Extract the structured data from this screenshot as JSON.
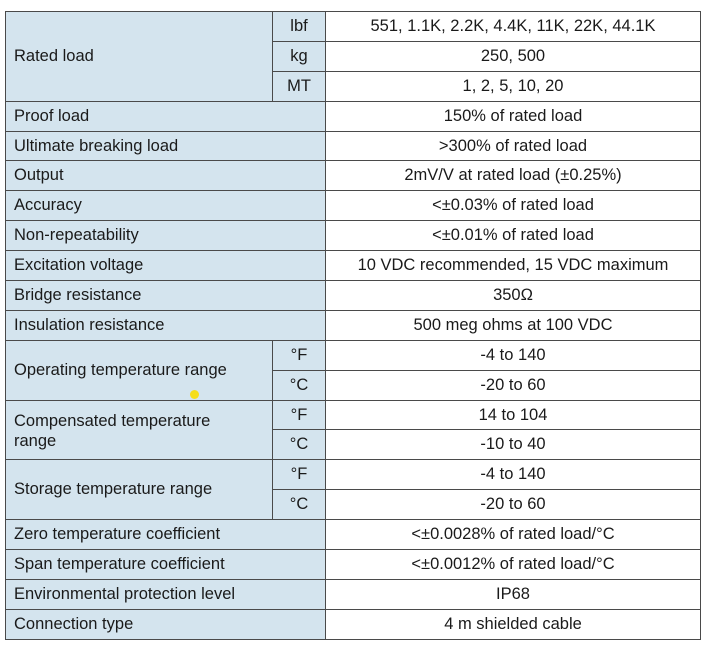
{
  "rated_load": {
    "label": "Rated load",
    "rows": [
      {
        "unit": "lbf",
        "value": "551, 1.1K, 2.2K, 4.4K, 11K, 22K, 44.1K"
      },
      {
        "unit": "kg",
        "value": "250, 500"
      },
      {
        "unit": "MT",
        "value": "1, 2, 5, 10, 20"
      }
    ]
  },
  "simple_rows_a": [
    {
      "label": "Proof load",
      "value": "150% of rated load"
    },
    {
      "label": "Ultimate breaking load",
      "value": ">300% of rated load"
    },
    {
      "label": "Output",
      "value": "2mV/V at rated load (±0.25%)"
    },
    {
      "label": "Accuracy",
      "value": "<±0.03% of rated load"
    },
    {
      "label": "Non-repeatability",
      "value": "<±0.01% of rated load"
    },
    {
      "label": "Excitation voltage",
      "value": "10 VDC recommended, 15 VDC maximum"
    },
    {
      "label": "Bridge resistance",
      "value": "350Ω"
    },
    {
      "label": "Insulation resistance",
      "value": "500 meg ohms at 100 VDC"
    }
  ],
  "operating_temp": {
    "label": "Operating temperature range",
    "rows": [
      {
        "unit": "°F",
        "value": "-4 to 140"
      },
      {
        "unit": "°C",
        "value": "-20 to 60"
      }
    ]
  },
  "compensated_temp": {
    "label_line1": "Compensated temperature",
    "label_line2": "range",
    "rows": [
      {
        "unit": "°F",
        "value": "14 to 104"
      },
      {
        "unit": "°C",
        "value": "-10 to 40"
      }
    ]
  },
  "storage_temp": {
    "label": "Storage temperature range",
    "rows": [
      {
        "unit": "°F",
        "value": "-4 to 140"
      },
      {
        "unit": "°C",
        "value": "-20 to 60"
      }
    ]
  },
  "simple_rows_b": [
    {
      "label": "Zero temperature coefficient",
      "value": "<±0.0028% of rated load/°C"
    },
    {
      "label": "Span temperature coefficient",
      "value": "<±0.0012% of rated load/°C"
    },
    {
      "label": "Environmental protection level",
      "value": "IP68"
    },
    {
      "label": "Connection type",
      "value": "4 m shielded cable"
    }
  ],
  "colors": {
    "label_bg": "#d4e4ee",
    "border": "#4a4a4a",
    "marker": "#f5de1a"
  }
}
